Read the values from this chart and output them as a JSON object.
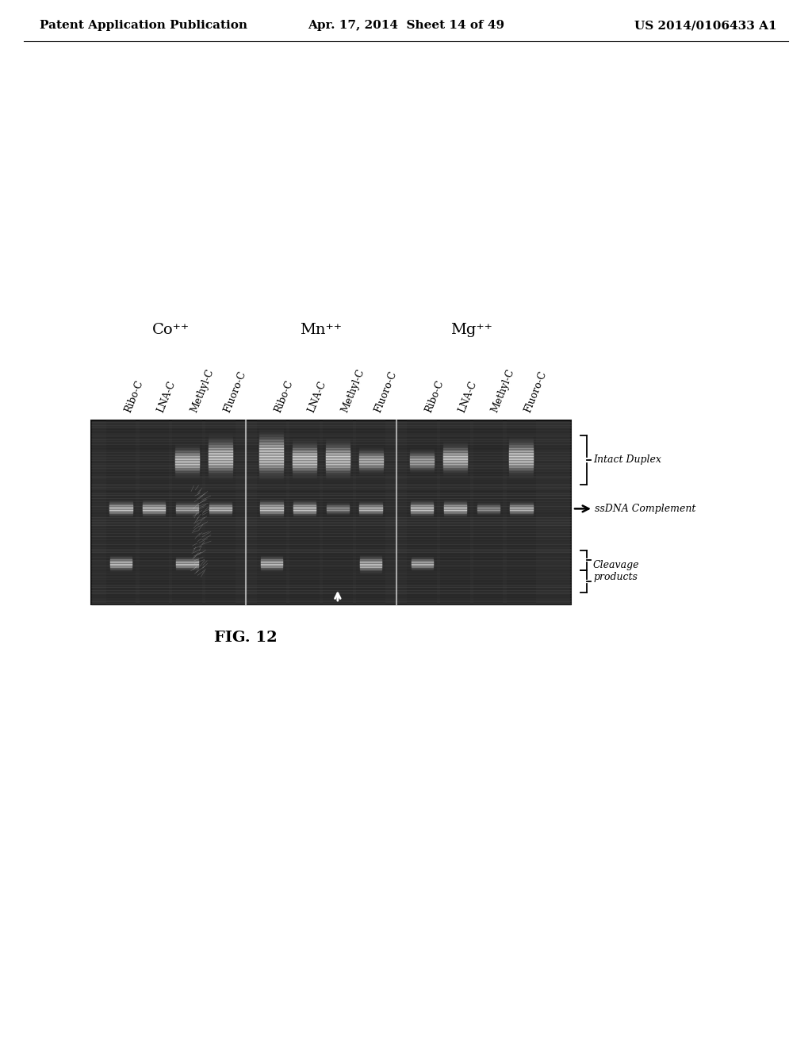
{
  "page_title_left": "Patent Application Publication",
  "page_title_center": "Apr. 17, 2014  Sheet 14 of 49",
  "page_title_right": "US 2014/0106433 A1",
  "figure_caption": "FIG. 12",
  "group_labels": [
    "Co⁺⁺",
    "Mn⁺⁺",
    "Mg⁺⁺"
  ],
  "lane_labels": [
    "Ribo-C",
    "LNA-C",
    "Methyl-C",
    "Fluoro-C"
  ],
  "annotation_intact_duplex": "Intact Duplex",
  "annotation_ssdna": "ssDNA Complement",
  "annotation_cleavage": "Cleavage\nproducts",
  "bg_color": "#ffffff",
  "header_fontsize": 11,
  "caption_fontsize": 13,
  "label_fontsize": 9,
  "annotation_fontsize": 9,
  "group_fontsize": 12
}
